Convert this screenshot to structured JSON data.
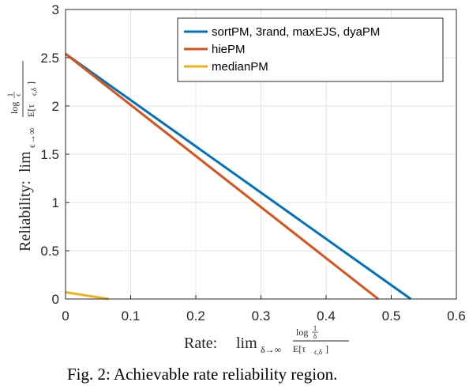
{
  "chart_data": {
    "type": "line",
    "caption": "Fig. 2: Achievable rate reliability region.",
    "xlabel": {
      "prefix": "Rate:",
      "limit": "lim",
      "limit_sub": "δ→∞",
      "num": "log",
      "num_frac_top": "1",
      "num_frac_bottom": "δ",
      "den": "E[τ",
      "den_sub": "ϵ,δ",
      "den_close": "]"
    },
    "ylabel": {
      "prefix": "Reliability:",
      "limit": "lim",
      "limit_sub": "ϵ→∞",
      "num": "log",
      "num_frac_top": "1",
      "num_frac_bottom": "ϵ",
      "den": "E[τ",
      "den_sub": "ϵ,δ",
      "den_close": "]"
    },
    "xlim": [
      0,
      0.6
    ],
    "ylim": [
      0,
      3
    ],
    "xticks": [
      "0",
      "0.1",
      "0.2",
      "0.3",
      "0.4",
      "0.5",
      "0.6"
    ],
    "yticks": [
      "0",
      "0.5",
      "1",
      "1.5",
      "2",
      "2.5",
      "3"
    ],
    "grid": true,
    "legend_position": "top-right",
    "series": [
      {
        "name": "sortPM, 3rand, maxEJS, dyaPM",
        "color": "#0072BD",
        "x": [
          0,
          0.53
        ],
        "y": [
          2.54,
          0
        ]
      },
      {
        "name": "hiePM",
        "color": "#D95319",
        "x": [
          0,
          0.48
        ],
        "y": [
          2.54,
          0
        ]
      },
      {
        "name": "medianPM",
        "color": "#EDB120",
        "x": [
          0,
          0.066
        ],
        "y": [
          0.07,
          0
        ]
      }
    ]
  }
}
